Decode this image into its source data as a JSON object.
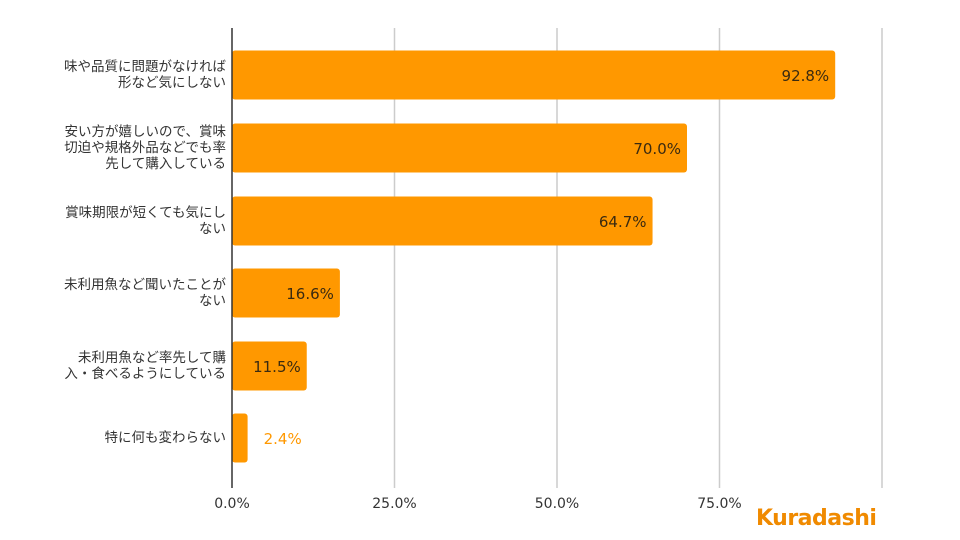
{
  "chart_data": {
    "type": "bar",
    "orientation": "horizontal",
    "categories": [
      "味や品質に問題がなければ形など気にしない",
      "安い方が嬉しいので、賞味切迫や規格外品などでも率先して購入している",
      "賞味期限が短くても気にしない",
      "未利用魚など聞いたことがない",
      "未利用魚など率先して購入・食べるようにしている",
      "特に何も変わらない"
    ],
    "values": [
      92.8,
      70.0,
      64.7,
      16.6,
      11.5,
      2.4
    ],
    "value_labels": [
      "92.8%",
      "70.0%",
      "64.7%",
      "16.6%",
      "11.5%",
      "2.4%"
    ],
    "x_ticks": [
      "0.0%",
      "25.0%",
      "50.0%",
      "75.0%"
    ],
    "xlim": [
      0,
      100
    ],
    "grid": true,
    "title": "",
    "xlabel": "",
    "ylabel": ""
  },
  "colors": {
    "bar": "#ff9800",
    "label_inside": "#3a2a10",
    "label_outside": "#ff9800",
    "grid": "#cccccc",
    "axis": "#333333",
    "brand": "#f08a00"
  },
  "brand": {
    "logo_text": "Kuradashi"
  }
}
